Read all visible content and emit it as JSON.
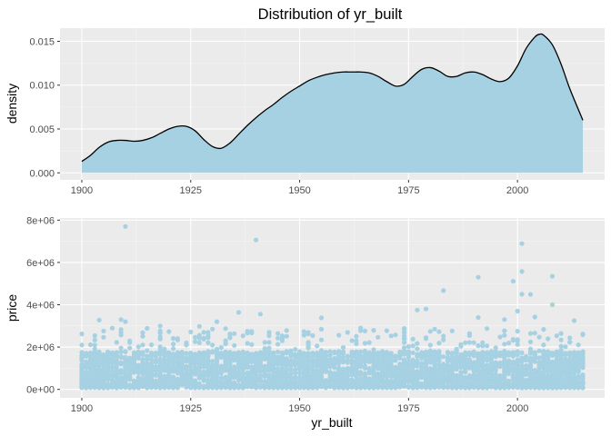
{
  "chart_data": [
    {
      "type": "area",
      "title": "Distribution of yr_built",
      "xlabel": "",
      "ylabel": "density",
      "xlim": [
        1895,
        2020
      ],
      "ylim": [
        -0.0008,
        0.0165
      ],
      "x_ticks": [
        1900,
        1925,
        1950,
        1975,
        2000
      ],
      "x_tick_labels": [
        "1900",
        "1925",
        "1950",
        "1975",
        "2000"
      ],
      "y_ticks": [
        0.0,
        0.005,
        0.01,
        0.015
      ],
      "y_tick_labels": [
        "0.000",
        "0.005",
        "0.010",
        "0.015"
      ],
      "fill_color": "#a6d1e3",
      "line_color": "#000000",
      "panel_color": "#ebebeb",
      "grid": true,
      "x": [
        1900,
        1902,
        1904,
        1906,
        1908,
        1910,
        1912,
        1914,
        1916,
        1918,
        1920,
        1922,
        1924,
        1926,
        1928,
        1930,
        1932,
        1934,
        1936,
        1938,
        1940,
        1942,
        1944,
        1946,
        1948,
        1950,
        1952,
        1954,
        1956,
        1958,
        1960,
        1962,
        1964,
        1966,
        1968,
        1970,
        1972,
        1974,
        1976,
        1978,
        1980,
        1982,
        1984,
        1986,
        1988,
        1990,
        1992,
        1994,
        1996,
        1998,
        2000,
        2002,
        2004,
        2005,
        2006,
        2008,
        2010,
        2012,
        2015
      ],
      "values": [
        0.0013,
        0.002,
        0.0029,
        0.0035,
        0.0037,
        0.0037,
        0.0036,
        0.0037,
        0.004,
        0.0045,
        0.005,
        0.0053,
        0.0053,
        0.0048,
        0.0038,
        0.003,
        0.0028,
        0.0034,
        0.0044,
        0.0054,
        0.0063,
        0.0071,
        0.0078,
        0.0086,
        0.0093,
        0.0099,
        0.0105,
        0.0109,
        0.0112,
        0.0114,
        0.0115,
        0.0115,
        0.0115,
        0.0114,
        0.011,
        0.0104,
        0.0099,
        0.0101,
        0.011,
        0.0118,
        0.012,
        0.0116,
        0.011,
        0.011,
        0.0114,
        0.0115,
        0.0112,
        0.0107,
        0.0104,
        0.0108,
        0.0122,
        0.0142,
        0.0155,
        0.0158,
        0.0157,
        0.0146,
        0.0124,
        0.0096,
        0.006
      ]
    },
    {
      "type": "scatter",
      "title": "",
      "xlabel": "yr_built",
      "ylabel": "price",
      "xlim": [
        1895,
        2020
      ],
      "ylim": [
        -400000,
        8100000
      ],
      "x_ticks": [
        1900,
        1925,
        1950,
        1975,
        2000
      ],
      "x_tick_labels": [
        "1900",
        "1925",
        "1950",
        "1975",
        "2000"
      ],
      "y_ticks": [
        0,
        2000000,
        4000000,
        6000000,
        8000000
      ],
      "y_tick_labels": [
        "0e+00",
        "2e+06",
        "4e+06",
        "6e+06",
        "8e+06"
      ],
      "point_color": "#a6d1e3",
      "panel_color": "#ebebeb",
      "grid": true,
      "points": [
        [
          1910,
          7700000
        ],
        [
          1940,
          7060000
        ],
        [
          2001,
          6890000
        ],
        [
          2001,
          5570000
        ],
        [
          2008,
          5350000
        ],
        [
          1991,
          5300000
        ],
        [
          1999,
          5110000
        ],
        [
          1983,
          4670000
        ],
        [
          2001,
          4500000
        ],
        [
          2003,
          4490000
        ],
        [
          2008,
          4000000
        ],
        [
          1936,
          3640000
        ],
        [
          1941,
          3560000
        ],
        [
          1909,
          3300000
        ],
        [
          1904,
          3280000
        ],
        [
          1910,
          3200000
        ],
        [
          1955,
          3380000
        ],
        [
          1979,
          3800000
        ],
        [
          1977,
          3750000
        ],
        [
          2004,
          3420000
        ],
        [
          1991,
          3400000
        ],
        [
          1997,
          3300000
        ],
        [
          2013,
          3250000
        ],
        [
          1918,
          3000000
        ],
        [
          1927,
          2980000
        ],
        [
          1931,
          3200000
        ],
        [
          1964,
          2900000
        ],
        [
          2000,
          3700000
        ]
      ],
      "band": {
        "x_range": [
          1900,
          2015
        ],
        "typical_low": 75000,
        "typical_high": 1800000,
        "sparse_high": 2900000
      }
    }
  ]
}
